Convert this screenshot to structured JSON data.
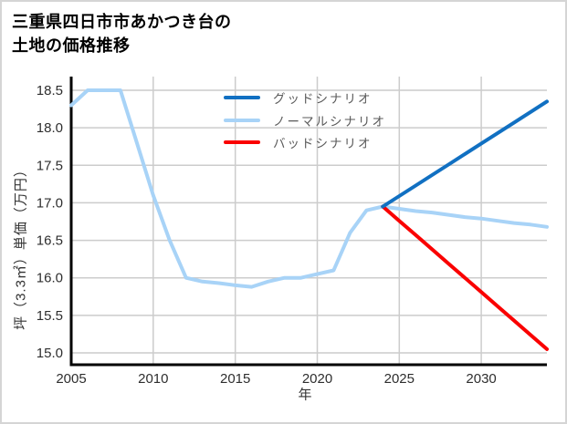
{
  "title": {
    "line1": "三重県四日市市あかつき台の",
    "line2": "土地の価格推移"
  },
  "legend": [
    {
      "id": "good",
      "label": "グッドシナリオ",
      "color": "#1170c2"
    },
    {
      "id": "normal",
      "label": "ノーマルシナリオ",
      "color": "#a8d3f7"
    },
    {
      "id": "bad",
      "label": "バッドシナリオ",
      "color": "#fa0000"
    }
  ],
  "chart_data": {
    "type": "line",
    "title": "三重県四日市市あかつき台の土地の価格推移",
    "xlabel": "年",
    "ylabel": "坪（3.3㎡）単価（万円）",
    "xlim": [
      2005,
      2034
    ],
    "ylim": [
      15.0,
      18.5
    ],
    "x_ticks": [
      2005,
      2010,
      2015,
      2020,
      2025,
      2030
    ],
    "y_ticks": [
      15.0,
      15.5,
      16.0,
      16.5,
      17.0,
      17.5,
      18.0,
      18.5
    ],
    "grid": true,
    "legend_position": "upper-left-inside",
    "series": [
      {
        "id": "normal",
        "name": "ノーマルシナリオ",
        "color": "#a8d3f7",
        "x": [
          2005,
          2006,
          2007,
          2008,
          2009,
          2010,
          2011,
          2012,
          2013,
          2014,
          2015,
          2016,
          2017,
          2018,
          2019,
          2020,
          2021,
          2022,
          2023,
          2024,
          2025,
          2026,
          2027,
          2028,
          2029,
          2030,
          2031,
          2032,
          2033,
          2034
        ],
        "y": [
          18.3,
          18.5,
          18.5,
          18.5,
          17.8,
          17.1,
          16.5,
          16.0,
          15.95,
          15.93,
          15.9,
          15.88,
          15.95,
          16.0,
          16.0,
          16.05,
          16.1,
          16.6,
          16.9,
          16.95,
          16.92,
          16.89,
          16.87,
          16.84,
          16.81,
          16.79,
          16.76,
          16.73,
          16.71,
          16.68
        ]
      },
      {
        "id": "bad",
        "name": "バッドシナリオ",
        "color": "#fa0000",
        "x": [
          2024,
          2025,
          2026,
          2027,
          2028,
          2029,
          2030,
          2031,
          2032,
          2033,
          2034
        ],
        "y": [
          16.95,
          16.76,
          16.57,
          16.38,
          16.19,
          16.0,
          15.81,
          15.62,
          15.43,
          15.24,
          15.05
        ]
      },
      {
        "id": "good",
        "name": "グッドシナリオ",
        "color": "#1170c2",
        "x": [
          2024,
          2025,
          2026,
          2027,
          2028,
          2029,
          2030,
          2031,
          2032,
          2033,
          2034
        ],
        "y": [
          16.95,
          17.09,
          17.23,
          17.37,
          17.51,
          17.65,
          17.79,
          17.93,
          18.07,
          18.21,
          18.35
        ]
      }
    ]
  }
}
